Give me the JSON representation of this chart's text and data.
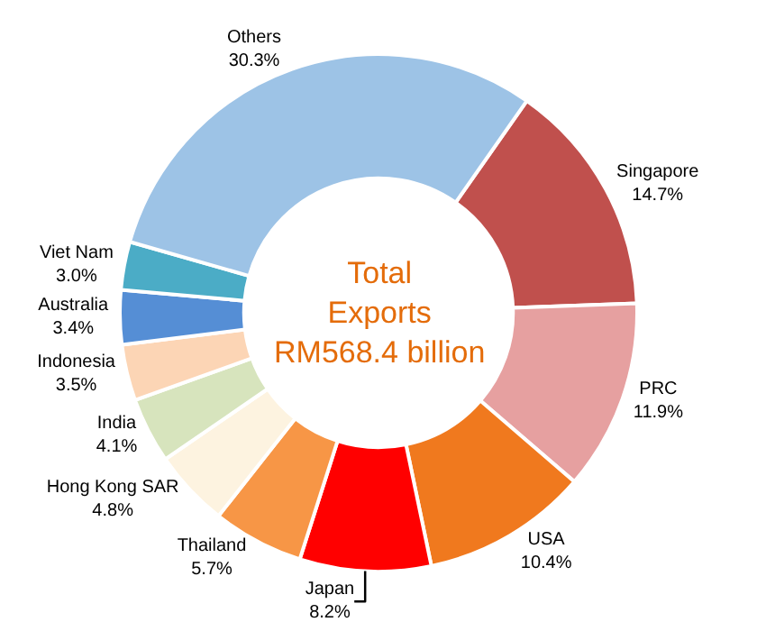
{
  "chart_data": {
    "type": "donut",
    "title": "Total Exports RM568.4 billion",
    "categories": [
      "Singapore",
      "PRC",
      "USA",
      "Japan",
      "Thailand",
      "Hong Kong SAR",
      "India",
      "Indonesia",
      "Australia",
      "Viet Nam",
      "Others"
    ],
    "values": [
      14.7,
      11.9,
      10.4,
      8.2,
      5.7,
      4.8,
      4.1,
      3.5,
      3.4,
      3.0,
      30.3
    ],
    "value_labels": [
      "14.7%",
      "11.9%",
      "10.4%",
      "8.2%",
      "5.7%",
      "4.8%",
      "4.1%",
      "3.5%",
      "3.4%",
      "3.0%",
      "30.3%"
    ],
    "colors": [
      "#c0504d",
      "#e6a0a0",
      "#f0791e",
      "#ff0000",
      "#f79646",
      "#fdf3e0",
      "#d7e4bd",
      "#fcd5b5",
      "#558ed5",
      "#4bacc6",
      "#9dc3e6"
    ],
    "legend": false
  }
}
